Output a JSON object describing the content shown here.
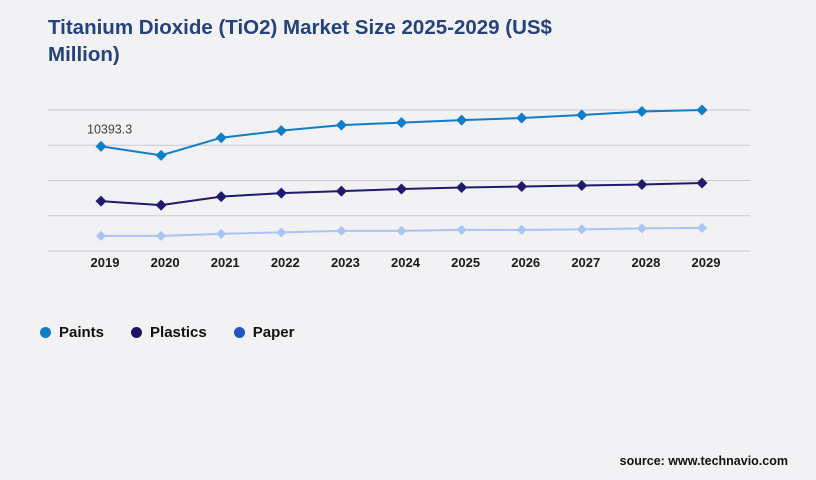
{
  "page": {
    "background_color": "#f2f2f4",
    "title": "Titanium Dioxide (TiO2) Market Size 2025-2029 (US$ Million)",
    "title_color": "#24437c",
    "source_text": "source: www.technavio.com"
  },
  "chart_data": {
    "type": "line",
    "title": "Titanium Dioxide (TiO2) Market Size 2025-2029 (US$ Million)",
    "xlabel": "",
    "ylabel": "",
    "categories": [
      "2019",
      "2020",
      "2021",
      "2022",
      "2023",
      "2024",
      "2025",
      "2026",
      "2027",
      "2028",
      "2029"
    ],
    "series": [
      {
        "name": "Paints",
        "color": "#0f7dc8",
        "legend_color": "#0f7dc8",
        "marker": "diamond",
        "values": [
          10393.3,
          9500,
          11250,
          11950,
          12500,
          12750,
          13000,
          13200,
          13500,
          13850,
          14000
        ]
      },
      {
        "name": "Plastics",
        "color": "#1f1a6e",
        "legend_color": "#1b1464",
        "marker": "diamond",
        "values": [
          4950,
          4550,
          5400,
          5750,
          5950,
          6150,
          6300,
          6400,
          6500,
          6600,
          6750
        ]
      },
      {
        "name": "Paper",
        "color": "#a8c5f4",
        "legend_color": "#2156c3",
        "marker": "diamond",
        "values": [
          1500,
          1500,
          1700,
          1850,
          2000,
          2000,
          2100,
          2100,
          2150,
          2250,
          2300
        ]
      }
    ],
    "annotation": {
      "series_index": 0,
      "point_index": 0,
      "text": "10393.3"
    },
    "ylim": [
      0,
      14000
    ],
    "grid_step": 3500,
    "grid": true,
    "legend_position": "bottom-left",
    "gridline_color": "#c9c9cf",
    "x_label_color": "#1a1a1a"
  }
}
